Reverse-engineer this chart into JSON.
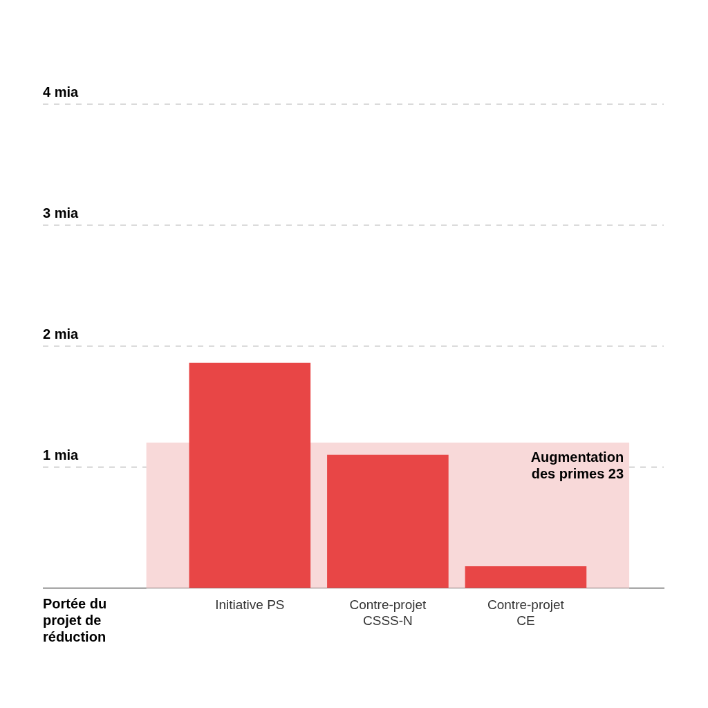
{
  "chart_data": {
    "type": "bar",
    "xlabel": "Portée du projet de réduction",
    "categories": [
      "Initiative PS",
      "Contre-projet CSSS-N",
      "Contre-projet CE"
    ],
    "values": [
      1.86,
      1.1,
      0.18
    ],
    "color": "#e84646",
    "ylim": [
      0,
      4
    ],
    "yticks": [
      {
        "value": 1,
        "label": "1 mia"
      },
      {
        "value": 2,
        "label": "2 mia"
      },
      {
        "value": 3,
        "label": "3 mia"
      },
      {
        "value": 4,
        "label": "4 mia"
      }
    ],
    "grid": "y",
    "bands": [
      {
        "axis": "y",
        "from": 0,
        "to": 1.2,
        "label": "Augmentation des primes 23",
        "color": "#f8d9d9"
      }
    ]
  }
}
